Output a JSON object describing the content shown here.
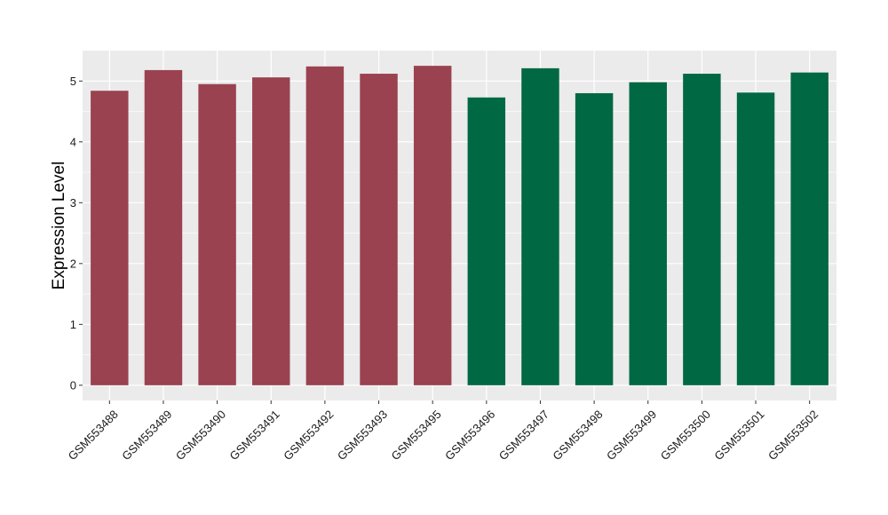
{
  "chart_data": {
    "type": "bar",
    "categories": [
      "GSM553488",
      "GSM553489",
      "GSM553490",
      "GSM553491",
      "GSM553492",
      "GSM553493",
      "GSM553495",
      "GSM553496",
      "GSM553497",
      "GSM553498",
      "GSM553499",
      "GSM553500",
      "GSM553501",
      "GSM553502"
    ],
    "values": [
      4.84,
      5.18,
      4.95,
      5.06,
      5.24,
      5.12,
      5.25,
      4.73,
      5.21,
      4.8,
      4.98,
      5.12,
      4.81,
      5.14
    ],
    "group": [
      0,
      0,
      0,
      0,
      0,
      0,
      0,
      1,
      1,
      1,
      1,
      1,
      1,
      1
    ],
    "colors": [
      "#9a4250",
      "#006843"
    ],
    "title": "",
    "xlabel": "",
    "ylabel": "Expression Level",
    "ylim": [
      -0.25,
      5.5
    ],
    "yticks": [
      0,
      1,
      2,
      3,
      4,
      5
    ],
    "grid": true,
    "panel_background": "#ebebeb",
    "gridline_color": "#ffffff"
  }
}
